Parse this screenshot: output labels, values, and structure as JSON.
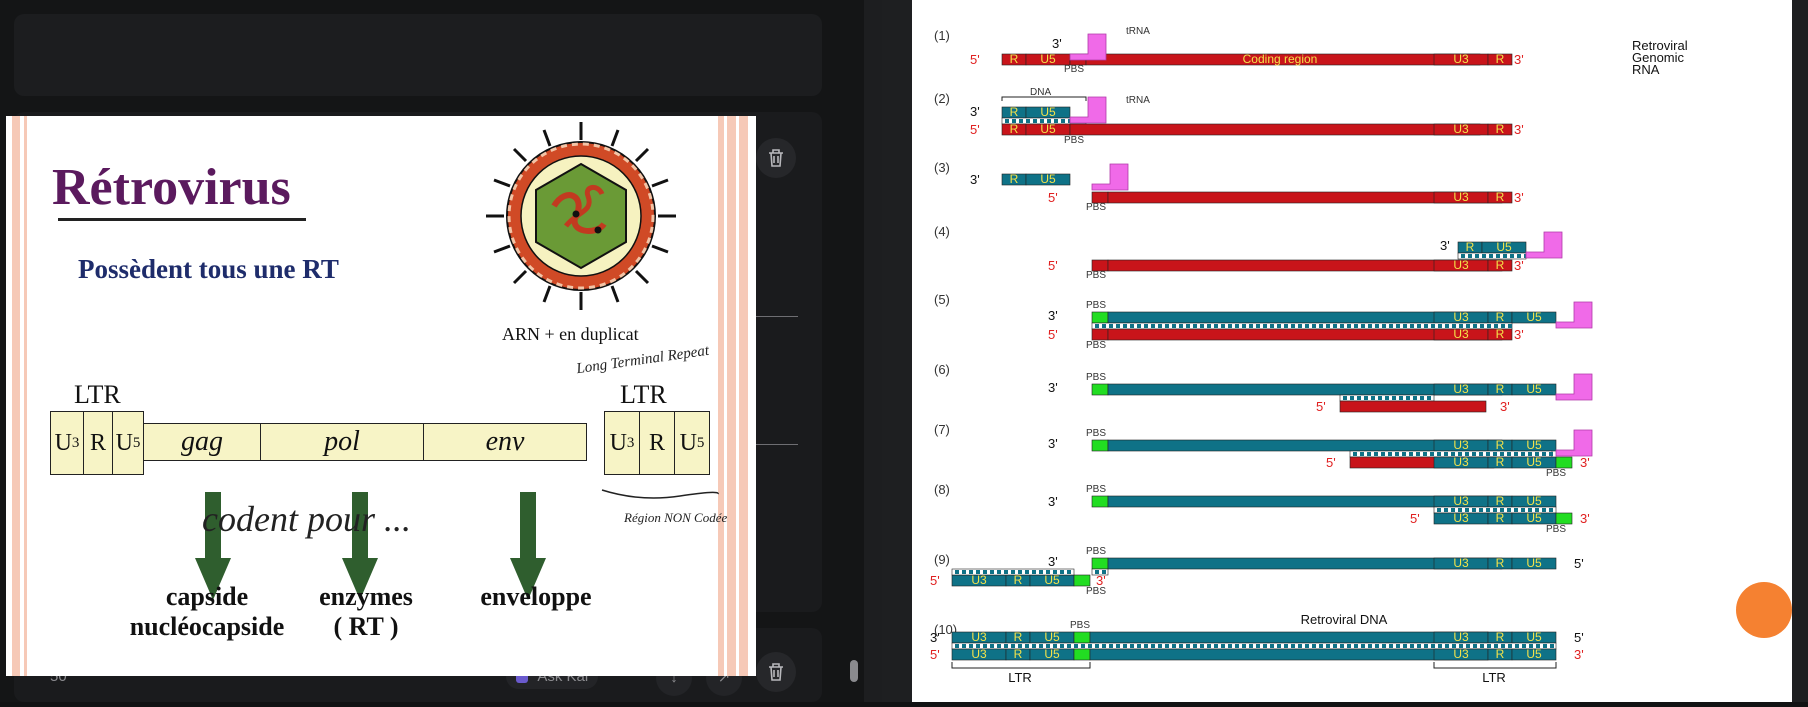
{
  "left": {
    "bottom_bar": {
      "number": "50",
      "action_label": "Ask Kai"
    },
    "slide": {
      "title": "Rétrovirus",
      "subtitle": "Possèdent tous une RT",
      "arn_label": "ARN + en duplicat",
      "ltr_left": "LTR",
      "ltr_right": "LTR",
      "ltr_annotation": "Long Terminal Repeat",
      "noncoding_annotation": "Région NON Codée",
      "codent_annotation": "codent pour ...",
      "ltr_boxes": {
        "u3_main": "U",
        "u3_sub": "3",
        "r": "R",
        "u5_main": "U",
        "u5_sub": "5"
      },
      "genes": [
        "gag",
        "pol",
        "env"
      ],
      "products": [
        {
          "line1": "capside",
          "line2": "nucléocapside"
        },
        {
          "line1": "enzymes",
          "line2": "( RT )"
        },
        {
          "line1": "enveloppe",
          "line2": ""
        }
      ],
      "colors": {
        "title": "#5b1a5e",
        "subtitle": "#1e2c6b",
        "arrow": "#2f5e2e",
        "box_fill": "#f7f4c6"
      }
    }
  },
  "diagram": {
    "labels": {
      "trna": "tRNA",
      "pbs": "PBS",
      "coding_region": "Coding region",
      "dna": "DNA",
      "genomic_rna_lines": [
        "Retroviral",
        "Genomic",
        "RNA"
      ],
      "retroviral_dna": "Retroviral DNA",
      "ltr": "LTR",
      "u3": "U3",
      "r": "R",
      "u5": "U5",
      "five_prime": "5'",
      "three_prime": "3'"
    },
    "steps": [
      "(1)",
      "(2)",
      "(3)",
      "(4)",
      "(5)",
      "(6)",
      "(7)",
      "(8)",
      "(9)",
      "(10)"
    ],
    "colors": {
      "rna": "#c8141a",
      "dna": "#0f7287",
      "pbs": "#22dd22",
      "trna": "#f06ae8",
      "segment_text": "#f3e24a"
    }
  }
}
